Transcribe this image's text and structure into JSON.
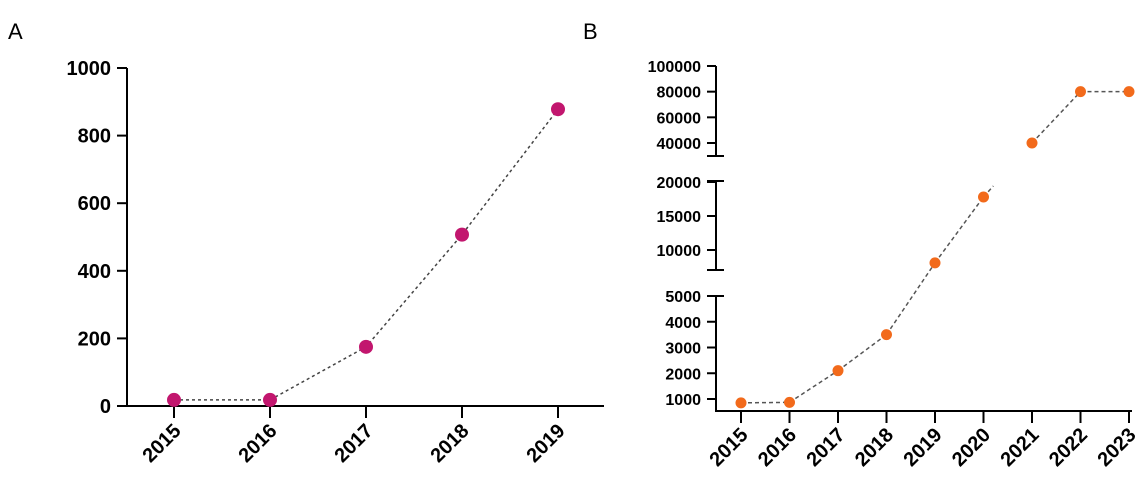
{
  "chart_data": [
    {
      "panel": "A",
      "type": "line",
      "categories": [
        "2015",
        "2016",
        "2017",
        "2018",
        "2019"
      ],
      "values": [
        18,
        18,
        175,
        507,
        878
      ],
      "ylim": [
        0,
        1000
      ],
      "yticks": [
        "0",
        "200",
        "400",
        "600",
        "800",
        "1000"
      ],
      "title": "",
      "xlabel": "",
      "ylabel": "",
      "color": "#c2166e",
      "line_style": "dotted",
      "grid": false
    },
    {
      "panel": "B",
      "type": "line",
      "categories": [
        "2015",
        "2016",
        "2017",
        "2018",
        "2019",
        "2020",
        "2021",
        "2022",
        "2023"
      ],
      "values": [
        850,
        870,
        2100,
        3500,
        8600,
        17800,
        40000,
        80000,
        80000
      ],
      "y_axis": "broken",
      "segments": [
        {
          "ylim": [
            1000,
            5000
          ],
          "yticks": [
            "1000",
            "2000",
            "3000",
            "4000",
            "5000"
          ]
        },
        {
          "ylim": [
            10000,
            20000
          ],
          "yticks": [
            "10000",
            "15000",
            "20000"
          ]
        },
        {
          "ylim": [
            40000,
            100000
          ],
          "yticks": [
            "40000",
            "60000",
            "80000",
            "100000"
          ]
        }
      ],
      "title": "",
      "xlabel": "",
      "ylabel": "",
      "color": "#f26a1b",
      "line_style": "dashed",
      "grid": false
    }
  ]
}
